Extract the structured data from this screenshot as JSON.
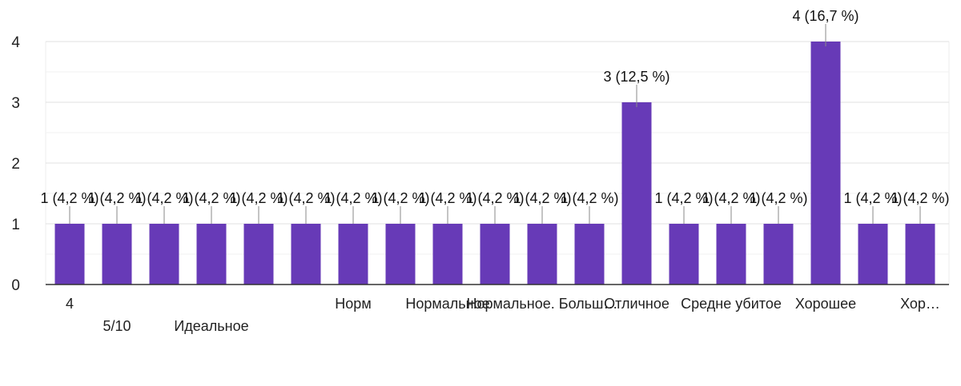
{
  "chart_data": {
    "type": "bar",
    "categories": [
      "4",
      "5/10",
      "",
      "Идеальное",
      "",
      "",
      "Норм",
      "",
      "Нормальное",
      "",
      "Нормальное. Больш…",
      "",
      "Отличное",
      "",
      "Средне убитое",
      "",
      "Хорошее",
      "",
      "Хор…"
    ],
    "values": [
      1,
      1,
      1,
      1,
      1,
      1,
      1,
      1,
      1,
      1,
      1,
      1,
      3,
      1,
      1,
      1,
      4,
      1,
      1
    ],
    "data_labels": [
      "1 (4,2 %)",
      "1 (4,2 %)",
      "1 (4,2 %)",
      "1 (4,2 %)",
      "1 (4,2 %)",
      "1 (4,2 %)",
      "1 (4,2 %)",
      "1 (4,2 %)",
      "1 (4,2 %)",
      "1 (4,2 %)",
      "1 (4,2 %)",
      "1 (4,2 %)",
      "3 (12,5 %)",
      "1 (4,2 %)",
      "1 (4,2 %)",
      "1 (4,2 %)",
      "4 (16,7 %)",
      "1 (4,2 %)",
      "1 (4,2 %)"
    ],
    "y_ticks": [
      0,
      1,
      2,
      3,
      4
    ],
    "ylim": [
      0,
      4
    ],
    "grid": true,
    "bar_color": "#673ab7",
    "title": "",
    "xlabel": "",
    "ylabel": ""
  }
}
